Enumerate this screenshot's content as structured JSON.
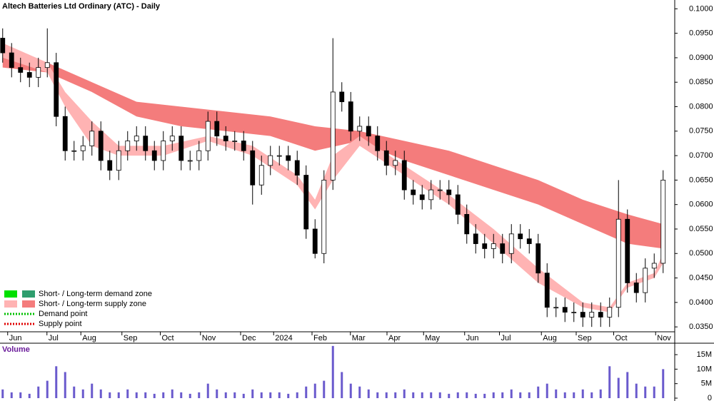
{
  "chart_data": {
    "type": "candlestick",
    "title": "Altech Batteries Ltd Ordinary (ATC) - Daily",
    "open": [
      0.094,
      0.091,
      0.088,
      0.087,
      0.086,
      0.088,
      0.089,
      0.078,
      0.071,
      0.071,
      0.072,
      0.075,
      0.069,
      0.067,
      0.071,
      0.073,
      0.074,
      0.071,
      0.069,
      0.073,
      0.074,
      0.069,
      0.069,
      0.071,
      0.077,
      0.074,
      0.073,
      0.073,
      0.071,
      0.064,
      0.068,
      0.07,
      0.07,
      0.069,
      0.066,
      0.055,
      0.05,
      0.065,
      0.083,
      0.081,
      0.075,
      0.076,
      0.074,
      0.071,
      0.068,
      0.069,
      0.063,
      0.062,
      0.061,
      0.063,
      0.063,
      0.062,
      0.058,
      0.054,
      0.052,
      0.051,
      0.052,
      0.05,
      0.054,
      0.053,
      0.052,
      0.046,
      0.039,
      0.039,
      0.038,
      0.038,
      0.037,
      0.038,
      0.037,
      0.039,
      0.057,
      0.044,
      0.042,
      0.047,
      0.048
    ],
    "high": [
      0.096,
      0.093,
      0.09,
      0.089,
      0.09,
      0.096,
      0.091,
      0.08,
      0.073,
      0.074,
      0.077,
      0.077,
      0.071,
      0.073,
      0.075,
      0.076,
      0.076,
      0.073,
      0.075,
      0.076,
      0.076,
      0.071,
      0.073,
      0.079,
      0.079,
      0.076,
      0.075,
      0.075,
      0.073,
      0.07,
      0.072,
      0.072,
      0.072,
      0.071,
      0.068,
      0.057,
      0.067,
      0.094,
      0.085,
      0.083,
      0.078,
      0.078,
      0.076,
      0.073,
      0.071,
      0.071,
      0.065,
      0.064,
      0.065,
      0.065,
      0.065,
      0.064,
      0.06,
      0.056,
      0.054,
      0.054,
      0.054,
      0.056,
      0.056,
      0.055,
      0.054,
      0.048,
      0.041,
      0.041,
      0.04,
      0.04,
      0.04,
      0.04,
      0.041,
      0.065,
      0.059,
      0.046,
      0.049,
      0.05,
      0.067
    ],
    "low": [
      0.089,
      0.086,
      0.085,
      0.084,
      0.084,
      0.086,
      0.076,
      0.069,
      0.069,
      0.069,
      0.07,
      0.067,
      0.065,
      0.065,
      0.069,
      0.071,
      0.069,
      0.067,
      0.067,
      0.071,
      0.067,
      0.067,
      0.067,
      0.069,
      0.072,
      0.071,
      0.071,
      0.069,
      0.06,
      0.062,
      0.066,
      0.068,
      0.067,
      0.064,
      0.053,
      0.049,
      0.048,
      0.063,
      0.079,
      0.073,
      0.073,
      0.072,
      0.069,
      0.066,
      0.066,
      0.061,
      0.06,
      0.059,
      0.059,
      0.061,
      0.06,
      0.056,
      0.052,
      0.05,
      0.049,
      0.049,
      0.048,
      0.048,
      0.051,
      0.05,
      0.044,
      0.037,
      0.037,
      0.036,
      0.036,
      0.035,
      0.035,
      0.035,
      0.035,
      0.037,
      0.042,
      0.04,
      0.04,
      0.045,
      0.046
    ],
    "close": [
      0.091,
      0.088,
      0.087,
      0.086,
      0.088,
      0.089,
      0.078,
      0.071,
      0.071,
      0.072,
      0.075,
      0.069,
      0.067,
      0.071,
      0.073,
      0.074,
      0.071,
      0.069,
      0.073,
      0.074,
      0.069,
      0.069,
      0.071,
      0.077,
      0.074,
      0.073,
      0.073,
      0.071,
      0.064,
      0.068,
      0.07,
      0.07,
      0.069,
      0.066,
      0.055,
      0.05,
      0.065,
      0.083,
      0.081,
      0.075,
      0.076,
      0.074,
      0.071,
      0.068,
      0.069,
      0.063,
      0.062,
      0.061,
      0.063,
      0.063,
      0.062,
      0.058,
      0.054,
      0.052,
      0.051,
      0.052,
      0.05,
      0.054,
      0.053,
      0.052,
      0.046,
      0.039,
      0.039,
      0.038,
      0.038,
      0.037,
      0.038,
      0.037,
      0.039,
      0.057,
      0.044,
      0.042,
      0.047,
      0.048,
      0.065
    ],
    "bands": [
      {
        "color": "#f47c7c",
        "x": [
          0,
          5,
          10,
          15,
          20,
          25,
          30,
          35,
          40,
          45,
          50,
          55,
          60,
          65,
          70,
          74
        ],
        "upper": [
          0.09,
          0.089,
          0.085,
          0.081,
          0.08,
          0.079,
          0.078,
          0.076,
          0.075,
          0.073,
          0.071,
          0.068,
          0.065,
          0.061,
          0.058,
          0.056
        ],
        "lower": [
          0.088,
          0.087,
          0.083,
          0.078,
          0.076,
          0.075,
          0.074,
          0.071,
          0.073,
          0.069,
          0.066,
          0.063,
          0.06,
          0.056,
          0.052,
          0.051
        ]
      },
      {
        "color": "#ffb3b3",
        "x": [
          0,
          5,
          7,
          10,
          13,
          18,
          23,
          28,
          33,
          35,
          37,
          40,
          45,
          50,
          55,
          60,
          65,
          68,
          70,
          73,
          74
        ],
        "upper": [
          0.093,
          0.089,
          0.083,
          0.077,
          0.072,
          0.072,
          0.074,
          0.072,
          0.066,
          0.061,
          0.07,
          0.074,
          0.068,
          0.062,
          0.055,
          0.047,
          0.04,
          0.039,
          0.044,
          0.046,
          0.05
        ],
        "lower": [
          0.09,
          0.087,
          0.08,
          0.072,
          0.07,
          0.07,
          0.073,
          0.07,
          0.064,
          0.059,
          0.065,
          0.072,
          0.066,
          0.06,
          0.052,
          0.044,
          0.039,
          0.038,
          0.043,
          0.045,
          0.048
        ]
      }
    ],
    "ylim": [
      0.034,
      0.1018
    ],
    "yticks": [
      {
        "value": 0.1,
        "label": "0.1000"
      },
      {
        "value": 0.095,
        "label": "0.0950"
      },
      {
        "value": 0.09,
        "label": "0.0900"
      },
      {
        "value": 0.085,
        "label": "0.0850"
      },
      {
        "value": 0.08,
        "label": "0.0800"
      },
      {
        "value": 0.075,
        "label": "0.0750"
      },
      {
        "value": 0.07,
        "label": "0.0700"
      },
      {
        "value": 0.065,
        "label": "0.0650"
      },
      {
        "value": 0.06,
        "label": "0.0600"
      },
      {
        "value": 0.055,
        "label": "0.0550"
      },
      {
        "value": 0.05,
        "label": "0.0500"
      },
      {
        "value": 0.045,
        "label": "0.0450"
      },
      {
        "value": 0.04,
        "label": "0.0400"
      },
      {
        "value": 0.035,
        "label": "0.0350"
      }
    ],
    "xlim": [
      -0.3,
      75.3
    ],
    "xticks": [
      {
        "value": 1.2,
        "label": "Jun"
      },
      {
        "value": 5.6,
        "label": "Jul"
      },
      {
        "value": 9.4,
        "label": "Aug"
      },
      {
        "value": 14,
        "label": "Sep"
      },
      {
        "value": 18.3,
        "label": "Oct"
      },
      {
        "value": 22.8,
        "label": "Nov"
      },
      {
        "value": 27.3,
        "label": "Dec"
      },
      {
        "value": 31,
        "label": "2024"
      },
      {
        "value": 35.3,
        "label": "Feb"
      },
      {
        "value": 39.6,
        "label": "Mar"
      },
      {
        "value": 43.7,
        "label": "Apr"
      },
      {
        "value": 47.8,
        "label": "May"
      },
      {
        "value": 52.4,
        "label": "Jun"
      },
      {
        "value": 56.3,
        "label": "Jul"
      },
      {
        "value": 61,
        "label": "Aug"
      },
      {
        "value": 64.9,
        "label": "Sep"
      },
      {
        "value": 69.1,
        "label": "Oct"
      },
      {
        "value": 73.8,
        "label": "Nov"
      }
    ],
    "legend": [
      {
        "label": "Short- / Long-term demand zone",
        "colors": [
          "#00e000",
          "#2e9e6e"
        ]
      },
      {
        "label": "Short- / Long-term supply zone",
        "colors": [
          "#ffb3b3",
          "#f47c7c"
        ]
      },
      {
        "label": "Demand point",
        "colors": [
          "#00c000"
        ]
      },
      {
        "label": "Supply point",
        "colors": [
          "#e00000"
        ]
      }
    ],
    "volume": {
      "title": "Volume",
      "color": "#6a5acd",
      "values": [
        3000000,
        2000000,
        2000000,
        1500000,
        4000000,
        6000000,
        11000000,
        9000000,
        4000000,
        3000000,
        5000000,
        3000000,
        2000000,
        2000000,
        3000000,
        2000000,
        2000000,
        1500000,
        2000000,
        3000000,
        2000000,
        1500000,
        2000000,
        5000000,
        3000000,
        2000000,
        2000000,
        1500000,
        3000000,
        2000000,
        2000000,
        2000000,
        1500000,
        2000000,
        4000000,
        5000000,
        6000000,
        18000000,
        9000000,
        5000000,
        4000000,
        3000000,
        2000000,
        2000000,
        2000000,
        3000000,
        2000000,
        2000000,
        2000000,
        2000000,
        1500000,
        2000000,
        2000000,
        1500000,
        1500000,
        2000000,
        2000000,
        3000000,
        2000000,
        2000000,
        4000000,
        5000000,
        3000000,
        2000000,
        2000000,
        3000000,
        2000000,
        3000000,
        11000000,
        7000000,
        9000000,
        5000000,
        4000000,
        4000000,
        10000000
      ],
      "ylim": [
        0,
        18700000
      ],
      "yticks": [
        {
          "value": 15000000,
          "label": "15M"
        },
        {
          "value": 10000000,
          "label": "10M"
        },
        {
          "value": 5000000,
          "label": "5M"
        },
        0
      ]
    }
  }
}
